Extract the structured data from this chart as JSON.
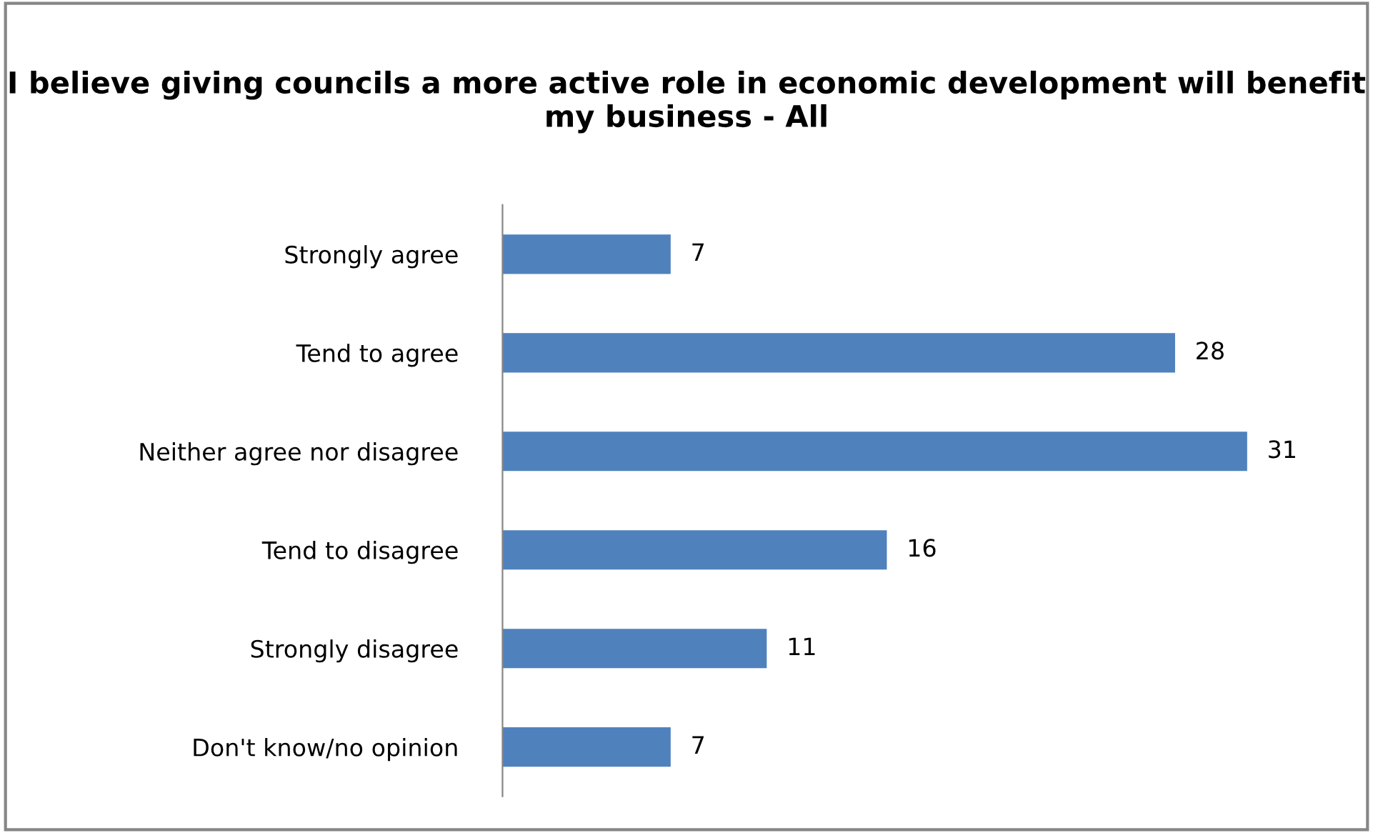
{
  "chart_data": {
    "type": "bar",
    "orientation": "horizontal",
    "title": "I believe giving councils a more active role in economic development will benefit my business - All",
    "categories": [
      "Strongly agree",
      "Tend to agree",
      "Neither agree nor disagree",
      "Tend to disagree",
      "Strongly disagree",
      "Don't know/no opinion"
    ],
    "values": [
      7,
      28,
      31,
      16,
      11,
      7
    ],
    "color": "#4f81bd",
    "data_labels": true,
    "grid": false,
    "legend": false
  }
}
